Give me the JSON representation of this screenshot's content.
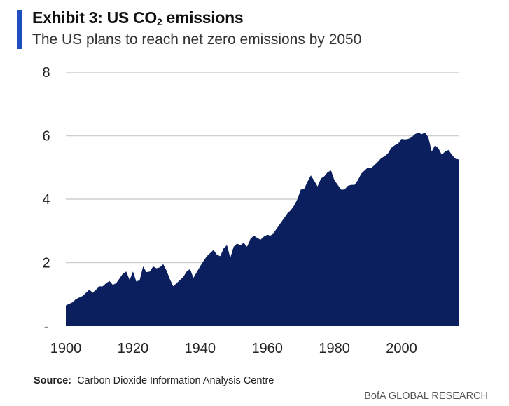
{
  "header": {
    "title_prefix": "Exhibit 3: US CO",
    "title_sub": "2",
    "title_suffix": " emissions",
    "subtitle": "The US plans to reach net zero emissions by 2050"
  },
  "footer": {
    "source_label": "Source:",
    "source_text": "Carbon Dioxide Information Analysis Centre",
    "brand": "BofA GLOBAL RESEARCH"
  },
  "colors": {
    "area": "#0b1f5e",
    "grid": "#cfcfcf",
    "accent": "#1f4fbf"
  },
  "chart_data": {
    "type": "area",
    "title": "Exhibit 3: US CO2 emissions",
    "subtitle": "The US plans to reach net zero emissions by 2050",
    "xlabel": "",
    "ylabel": "",
    "xlim": [
      1900,
      2017
    ],
    "ylim": [
      0,
      8
    ],
    "x_ticks": [
      1900,
      1920,
      1940,
      1960,
      1980,
      2000
    ],
    "y_ticks": [
      0,
      2,
      4,
      6,
      8
    ],
    "y_tick_labels": [
      "-",
      "2",
      "4",
      "6",
      "8"
    ],
    "grid": true,
    "series": [
      {
        "x": [
          1900,
          1901,
          1902,
          1903,
          1904,
          1905,
          1906,
          1907,
          1908,
          1909,
          1910,
          1911,
          1912,
          1913,
          1914,
          1915,
          1916,
          1917,
          1918,
          1919,
          1920,
          1921,
          1922,
          1923,
          1924,
          1925,
          1926,
          1927,
          1928,
          1929,
          1930,
          1931,
          1932,
          1933,
          1934,
          1935,
          1936,
          1937,
          1938,
          1939,
          1940,
          1941,
          1942,
          1943,
          1944,
          1945,
          1946,
          1947,
          1948,
          1949,
          1950,
          1951,
          1952,
          1953,
          1954,
          1955,
          1956,
          1957,
          1958,
          1959,
          1960,
          1961,
          1962,
          1963,
          1964,
          1965,
          1966,
          1967,
          1968,
          1969,
          1970,
          1971,
          1972,
          1973,
          1974,
          1975,
          1976,
          1977,
          1978,
          1979,
          1980,
          1981,
          1982,
          1983,
          1984,
          1985,
          1986,
          1987,
          1988,
          1989,
          1990,
          1991,
          1992,
          1993,
          1994,
          1995,
          1996,
          1997,
          1998,
          1999,
          2000,
          2001,
          2002,
          2003,
          2004,
          2005,
          2006,
          2007,
          2008,
          2009,
          2010,
          2011,
          2012,
          2013,
          2014,
          2015,
          2016,
          2017
        ],
        "values": [
          0.65,
          0.7,
          0.75,
          0.85,
          0.9,
          0.95,
          1.05,
          1.15,
          1.05,
          1.15,
          1.25,
          1.25,
          1.35,
          1.42,
          1.3,
          1.35,
          1.5,
          1.65,
          1.72,
          1.45,
          1.72,
          1.4,
          1.45,
          1.88,
          1.7,
          1.72,
          1.88,
          1.82,
          1.85,
          1.95,
          1.75,
          1.48,
          1.25,
          1.35,
          1.45,
          1.55,
          1.72,
          1.8,
          1.52,
          1.7,
          1.88,
          2.05,
          2.2,
          2.3,
          2.4,
          2.25,
          2.2,
          2.45,
          2.55,
          2.15,
          2.5,
          2.6,
          2.55,
          2.62,
          2.5,
          2.75,
          2.85,
          2.78,
          2.72,
          2.82,
          2.88,
          2.85,
          2.95,
          3.1,
          3.25,
          3.4,
          3.55,
          3.65,
          3.8,
          4.0,
          4.3,
          4.32,
          4.55,
          4.75,
          4.58,
          4.4,
          4.65,
          4.72,
          4.85,
          4.9,
          4.6,
          4.45,
          4.3,
          4.3,
          4.42,
          4.45,
          4.45,
          4.6,
          4.8,
          4.9,
          5.0,
          4.98,
          5.08,
          5.18,
          5.3,
          5.35,
          5.45,
          5.62,
          5.7,
          5.75,
          5.9,
          5.88,
          5.9,
          5.95,
          6.05,
          6.1,
          6.05,
          6.1,
          5.95,
          5.5,
          5.7,
          5.6,
          5.4,
          5.5,
          5.55,
          5.4,
          5.28,
          5.25
        ]
      }
    ]
  }
}
